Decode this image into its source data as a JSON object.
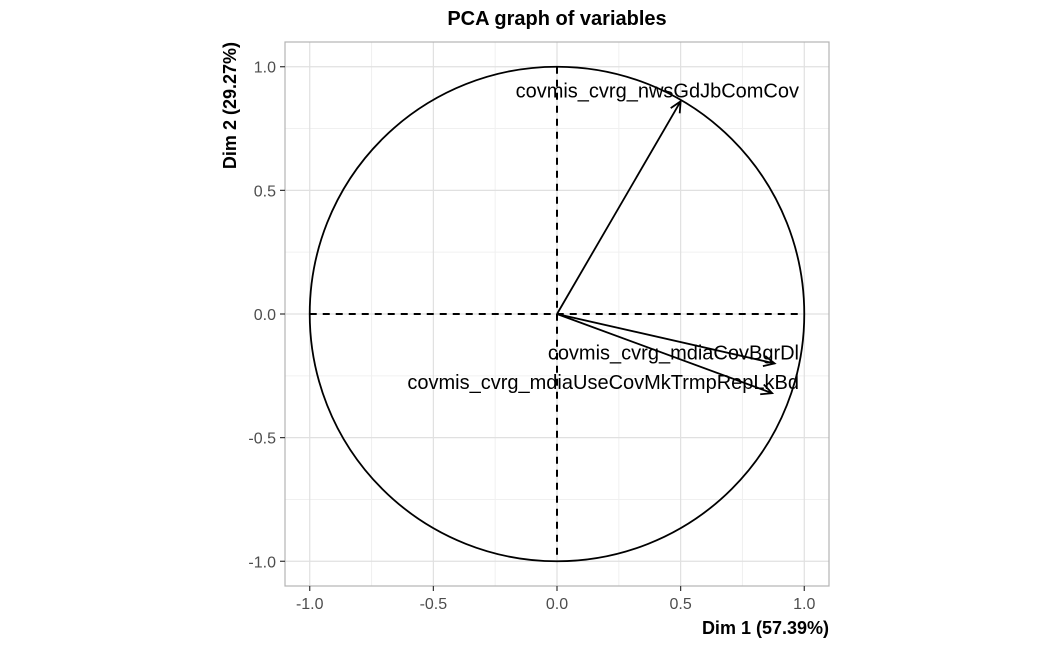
{
  "chart_data": {
    "type": "scatter",
    "subtype": "pca-correlation-circle",
    "title": "PCA graph of variables",
    "xlabel": "Dim 1 (57.39%)",
    "ylabel": "Dim 2 (29.27%)",
    "xlim": [
      -1.1,
      1.1
    ],
    "ylim": [
      -1.1,
      1.1
    ],
    "xticks": [
      -1.0,
      -0.5,
      0.0,
      0.5,
      1.0
    ],
    "yticks": [
      -1.0,
      -0.5,
      0.0,
      0.5,
      1.0
    ],
    "xtick_labels": [
      "-1.0",
      "-0.5",
      "0.0",
      "0.5",
      "1.0"
    ],
    "ytick_labels": [
      "-1.0",
      "-0.5",
      "0.0",
      "0.5",
      "1.0"
    ],
    "grid": true,
    "unit_circle": true,
    "reference_lines": "dashed lines at x=0 and y=0",
    "variables": [
      {
        "label": "covmis_cvrg_nwsGdJbComCov",
        "x": 0.5,
        "y": 0.86
      },
      {
        "label": "covmis_cvrg_mdiaCovBgrDl",
        "x": 0.88,
        "y": -0.2
      },
      {
        "label": "covmis_cvrg_mdiaUseCovMkTrmpRepLkBd",
        "x": 0.87,
        "y": -0.32
      }
    ]
  },
  "colors": {
    "background": "#ffffff",
    "panel_border": "#b3b3b3",
    "grid_major": "#e0e0e0",
    "grid_minor": "#f0f0f0",
    "ink": "#000000",
    "tick_text": "#4d4d4d"
  }
}
